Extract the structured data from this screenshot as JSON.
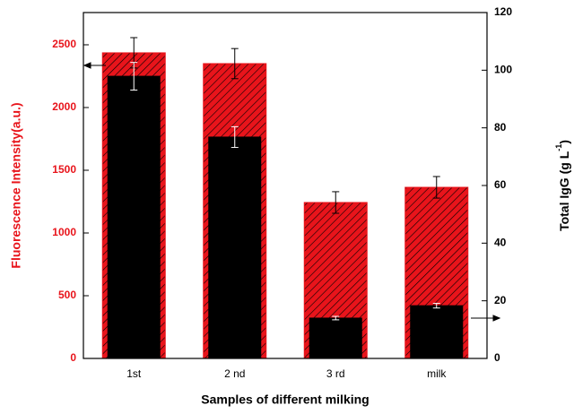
{
  "chart_data": {
    "type": "bar",
    "xlabel": "Samples of different milking",
    "ylabel": "Fluorescence Intensity(a.u.)",
    "y2label": [
      "Total IgG (g L",
      "-1",
      ")"
    ],
    "categories": [
      "1st",
      "2 nd",
      "3 rd",
      "milk"
    ],
    "series": [
      {
        "color": "#e8141b",
        "hatch": true,
        "error_color": "#000000",
        "values": [
          2436,
          2350,
          1243,
          1364
        ],
        "errors": [
          121,
          120,
          86,
          86
        ]
      },
      {
        "color": "#000000",
        "axis": "y2",
        "error_color": "#ffffff",
        "values": [
          97.9,
          76.8,
          14.0,
          18.3
        ],
        "errors": [
          4.8,
          3.6,
          0.6,
          0.8
        ]
      }
    ],
    "ylim": [
      0,
      2757
    ],
    "yticks": [
      0,
      500,
      1000,
      1500,
      2000,
      2500
    ],
    "y2lim": [
      0,
      120
    ],
    "y2ticks": [
      0,
      20,
      40,
      60,
      80,
      100,
      120
    ]
  }
}
